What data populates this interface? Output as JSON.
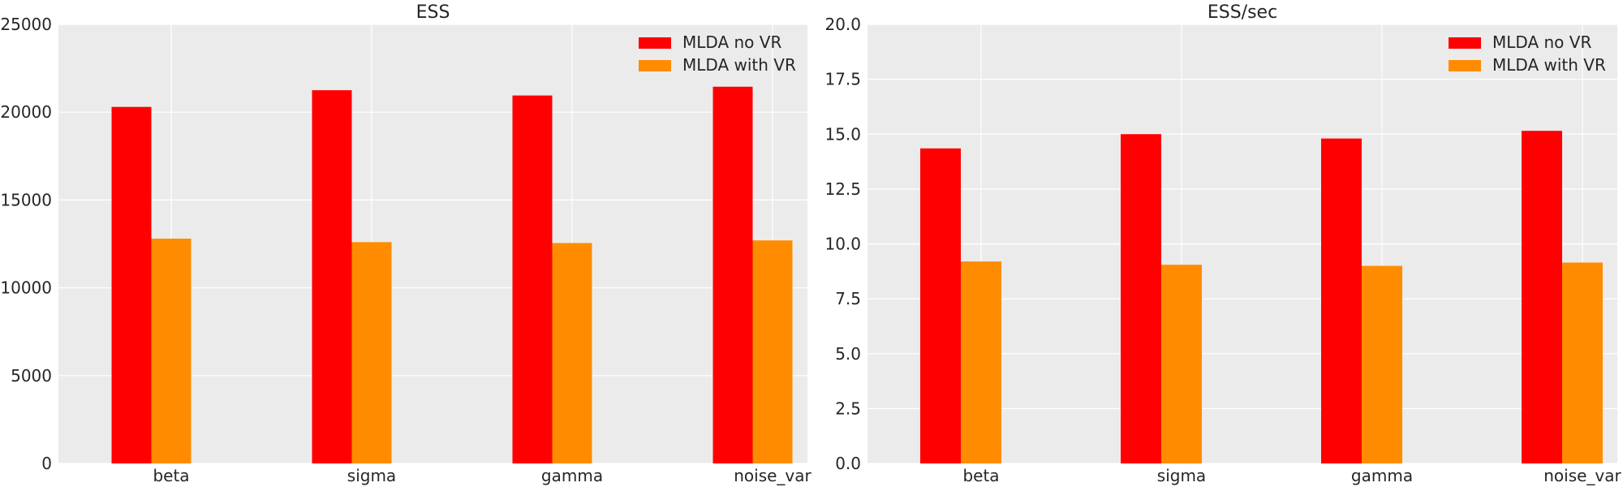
{
  "chart_data": [
    {
      "type": "bar",
      "title": "ESS",
      "xlabel": "",
      "ylabel": "",
      "categories": [
        "beta",
        "sigma",
        "gamma",
        "noise_var"
      ],
      "series": [
        {
          "name": "MLDA no VR",
          "color": "#ff0000",
          "values": [
            20300,
            21250,
            20950,
            21450
          ]
        },
        {
          "name": "MLDA with VR",
          "color": "#ff8c00",
          "values": [
            12800,
            12600,
            12550,
            12700
          ]
        }
      ],
      "ylim": [
        0,
        25000
      ],
      "yticks": [
        0,
        5000,
        10000,
        15000,
        20000,
        25000
      ],
      "ytick_labels": [
        "0",
        "5000",
        "10000",
        "15000",
        "20000",
        "25000"
      ],
      "grid": true,
      "legend_position": "top-right"
    },
    {
      "type": "bar",
      "title": "ESS/sec",
      "xlabel": "",
      "ylabel": "",
      "categories": [
        "beta",
        "sigma",
        "gamma",
        "noise_var"
      ],
      "series": [
        {
          "name": "MLDA no VR",
          "color": "#ff0000",
          "values": [
            14.35,
            15.0,
            14.8,
            15.15
          ]
        },
        {
          "name": "MLDA with VR",
          "color": "#ff8c00",
          "values": [
            9.2,
            9.05,
            9.0,
            9.15
          ]
        }
      ],
      "ylim": [
        0,
        20
      ],
      "yticks": [
        0,
        2.5,
        5,
        7.5,
        10,
        12.5,
        15,
        17.5,
        20
      ],
      "ytick_labels": [
        "0.0",
        "2.5",
        "5.0",
        "7.5",
        "10.0",
        "12.5",
        "15.0",
        "17.5",
        "20.0"
      ],
      "grid": true,
      "legend_position": "top-right"
    }
  ],
  "colors": {
    "axes_background": "#ebebeb",
    "grid": "#ffffff",
    "text": "#262626"
  }
}
